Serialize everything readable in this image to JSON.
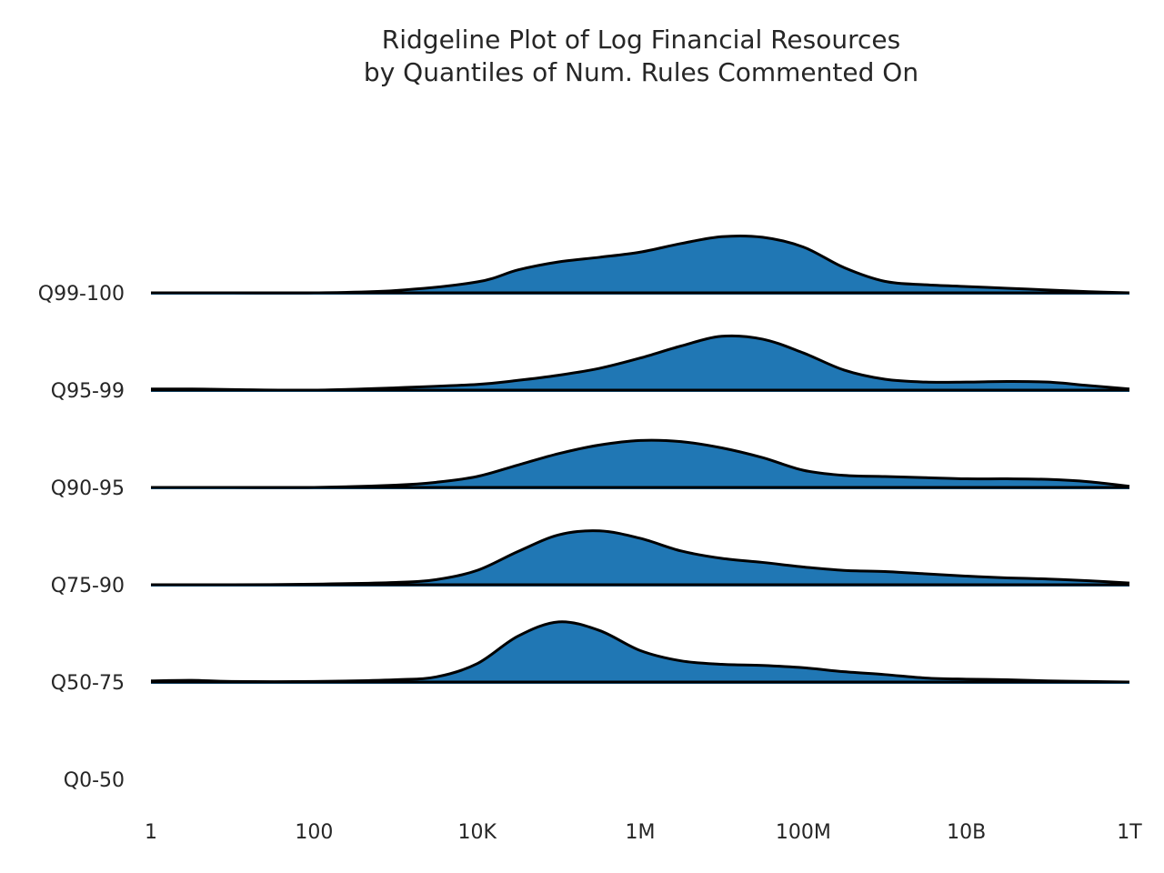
{
  "chart_data": {
    "type": "ridgeline",
    "title": "Ridgeline Plot of Log Financial Resources",
    "subtitle": "by Quantiles of Num. Rules Commented On",
    "xlabel": "",
    "ylabel": "",
    "x_scale": "log10",
    "xlim": [
      1,
      1000000000000
    ],
    "x_ticks": [
      1,
      100,
      10000,
      1000000,
      100000000,
      10000000000,
      1000000000000
    ],
    "x_tick_labels": [
      "1",
      "100",
      "10K",
      "1M",
      "100M",
      "10B",
      "1T"
    ],
    "grid": false,
    "legend": "none",
    "fill_color": "#2077b4",
    "line_color": "#000000",
    "categories": [
      "Q99-100",
      "Q95-99",
      "Q90-95",
      "Q75-90",
      "Q50-75",
      "Q0-50"
    ],
    "series": [
      {
        "category": "Q99-100",
        "x_log10": [
          0,
          1,
          2,
          3,
          4,
          4.5,
          5,
          5.5,
          6,
          6.5,
          7,
          7.5,
          8,
          8.5,
          9,
          9.5,
          10,
          10.5,
          11,
          11.5,
          12
        ],
        "density": [
          0,
          0,
          0,
          0.04,
          0.19,
          0.4,
          0.54,
          0.62,
          0.71,
          0.86,
          0.98,
          0.97,
          0.8,
          0.44,
          0.2,
          0.14,
          0.11,
          0.08,
          0.05,
          0.02,
          0
        ]
      },
      {
        "category": "Q95-99",
        "x_log10": [
          0,
          0.5,
          1,
          2,
          3,
          4,
          4.5,
          5,
          5.5,
          6,
          6.5,
          7,
          7.5,
          8,
          8.5,
          9,
          9.5,
          10,
          10.5,
          11,
          11.5,
          12
        ],
        "density": [
          0.02,
          0.02,
          0.01,
          0,
          0.04,
          0.1,
          0.17,
          0.26,
          0.38,
          0.56,
          0.77,
          0.94,
          0.89,
          0.65,
          0.35,
          0.19,
          0.14,
          0.14,
          0.15,
          0.14,
          0.08,
          0.02
        ]
      },
      {
        "category": "Q90-95",
        "x_log10": [
          0,
          1,
          2,
          3,
          3.5,
          4,
          4.5,
          5,
          5.5,
          6,
          6.5,
          7,
          7.5,
          8,
          8.5,
          9,
          9.5,
          10,
          10.5,
          11,
          11.5,
          12
        ],
        "density": [
          0,
          0,
          0,
          0.04,
          0.09,
          0.19,
          0.39,
          0.59,
          0.74,
          0.82,
          0.8,
          0.69,
          0.52,
          0.3,
          0.21,
          0.19,
          0.17,
          0.15,
          0.15,
          0.14,
          0.1,
          0.02
        ]
      },
      {
        "category": "Q75-90",
        "x_log10": [
          0,
          1,
          2,
          3,
          3.5,
          4,
          4.5,
          5,
          5.5,
          6,
          6.5,
          7,
          7.5,
          8,
          8.5,
          9,
          9.5,
          10,
          10.5,
          11,
          11.5,
          12
        ],
        "density": [
          0,
          0,
          0.01,
          0.04,
          0.09,
          0.25,
          0.58,
          0.87,
          0.94,
          0.81,
          0.59,
          0.46,
          0.39,
          0.31,
          0.25,
          0.23,
          0.19,
          0.15,
          0.12,
          0.1,
          0.07,
          0.03
        ]
      },
      {
        "category": "Q50-75",
        "x_log10": [
          0,
          0.5,
          1,
          2,
          3,
          3.5,
          4,
          4.5,
          5,
          5.5,
          6,
          6.5,
          7,
          7.5,
          8,
          8.5,
          9,
          9.5,
          10,
          10.5,
          11,
          11.5,
          12
        ],
        "density": [
          0.02,
          0.03,
          0.01,
          0.01,
          0.04,
          0.09,
          0.32,
          0.8,
          1.05,
          0.9,
          0.55,
          0.37,
          0.31,
          0.29,
          0.25,
          0.18,
          0.13,
          0.07,
          0.05,
          0.04,
          0.02,
          0.01,
          0
        ]
      },
      {
        "category": "Q0-50",
        "x_log10": [],
        "density": []
      }
    ]
  }
}
